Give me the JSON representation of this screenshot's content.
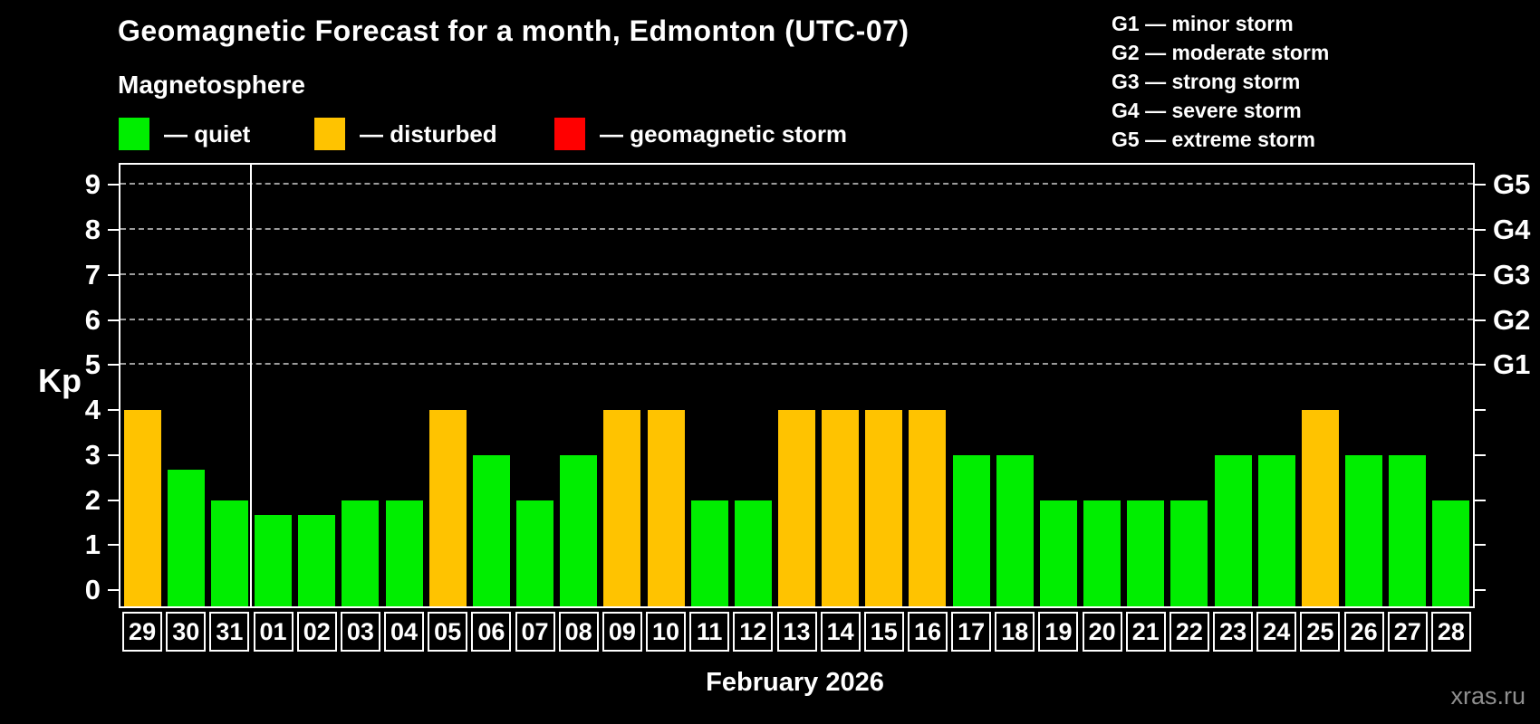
{
  "title": "Geomagnetic Forecast for a month, Edmonton (UTC-07)",
  "subtitle": "Magnetosphere",
  "legend": {
    "items": [
      {
        "name": "quiet",
        "label": "— quiet",
        "color": "#00ee00"
      },
      {
        "name": "disturbed",
        "label": "— disturbed",
        "color": "#ffc300"
      },
      {
        "name": "storm",
        "label": "— geomagnetic storm",
        "color": "#ff0000"
      }
    ]
  },
  "g_scale_legend": [
    "G1 — minor storm",
    "G2 — moderate storm",
    "G3 — strong storm",
    "G4 — severe storm",
    "G5 — extreme storm"
  ],
  "watermark": "xras.ru",
  "chart_data": {
    "type": "bar",
    "title": "Geomagnetic Forecast for a month, Edmonton (UTC-07)",
    "xlabel": "February 2026",
    "ylabel": "Kp",
    "ylim": [
      0,
      9
    ],
    "y_ticks": [
      0,
      1,
      2,
      3,
      4,
      5,
      6,
      7,
      8,
      9
    ],
    "gridlines_at": [
      5,
      6,
      7,
      8,
      9
    ],
    "grid": "dashed",
    "legend_position": "top-left",
    "right_axis_labels": [
      {
        "kp": 5,
        "label": "G1"
      },
      {
        "kp": 6,
        "label": "G2"
      },
      {
        "kp": 7,
        "label": "G3"
      },
      {
        "kp": 8,
        "label": "G4"
      },
      {
        "kp": 9,
        "label": "G5"
      }
    ],
    "month_separator_after_index": 2,
    "status_colors": {
      "quiet": "#00ee00",
      "disturbed": "#ffc300",
      "storm": "#ff0000"
    },
    "categories": [
      "29",
      "30",
      "31",
      "01",
      "02",
      "03",
      "04",
      "05",
      "06",
      "07",
      "08",
      "09",
      "10",
      "11",
      "12",
      "13",
      "14",
      "15",
      "16",
      "17",
      "18",
      "19",
      "20",
      "21",
      "22",
      "23",
      "24",
      "25",
      "26",
      "27",
      "28"
    ],
    "values": [
      4,
      2.67,
      2,
      1.67,
      1.67,
      2,
      2,
      4,
      3,
      2,
      3,
      4,
      4,
      2,
      2,
      4,
      4,
      4,
      4,
      3,
      3,
      2,
      2,
      2,
      2,
      3,
      3,
      4,
      3,
      3,
      2
    ],
    "statuses": [
      "disturbed",
      "quiet",
      "quiet",
      "quiet",
      "quiet",
      "quiet",
      "quiet",
      "disturbed",
      "quiet",
      "quiet",
      "quiet",
      "disturbed",
      "disturbed",
      "quiet",
      "quiet",
      "disturbed",
      "disturbed",
      "disturbed",
      "disturbed",
      "quiet",
      "quiet",
      "quiet",
      "quiet",
      "quiet",
      "quiet",
      "quiet",
      "quiet",
      "disturbed",
      "quiet",
      "quiet",
      "quiet"
    ]
  }
}
